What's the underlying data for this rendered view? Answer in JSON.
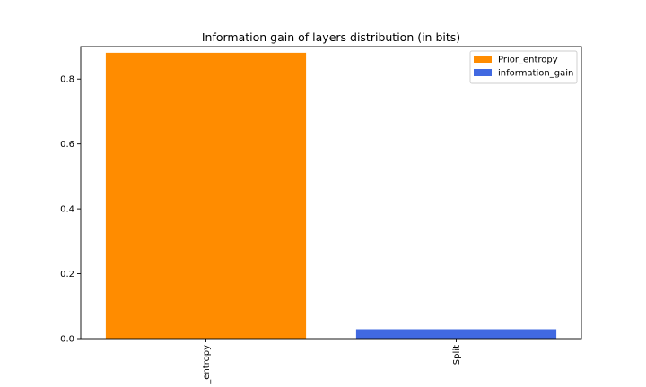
{
  "chart_data": {
    "type": "bar",
    "title": "Information gain of layers distribution (in bits)",
    "xlabel": "",
    "ylabel": "",
    "categories": [
      "Prior_entropy",
      "Split"
    ],
    "tick_labels_visible": [
      "_entropy",
      "Split"
    ],
    "series": [
      {
        "name": "Prior_entropy",
        "color": "#ff8c00",
        "values": [
          0.881,
          null
        ]
      },
      {
        "name": "information_gain",
        "color": "#4169e1",
        "values": [
          null,
          0.029
        ]
      }
    ],
    "ylim": [
      0,
      0.9
    ],
    "yticks": [
      {
        "value": 0.0,
        "label": "0.0"
      },
      {
        "value": 0.2,
        "label": "0.2"
      },
      {
        "value": 0.4,
        "label": "0.4"
      },
      {
        "value": 0.6,
        "label": "0.6"
      },
      {
        "value": 0.8,
        "label": "0.8"
      }
    ],
    "grid": false,
    "legend_position": "top-right",
    "x_tick_label_rotation": "vertical"
  }
}
